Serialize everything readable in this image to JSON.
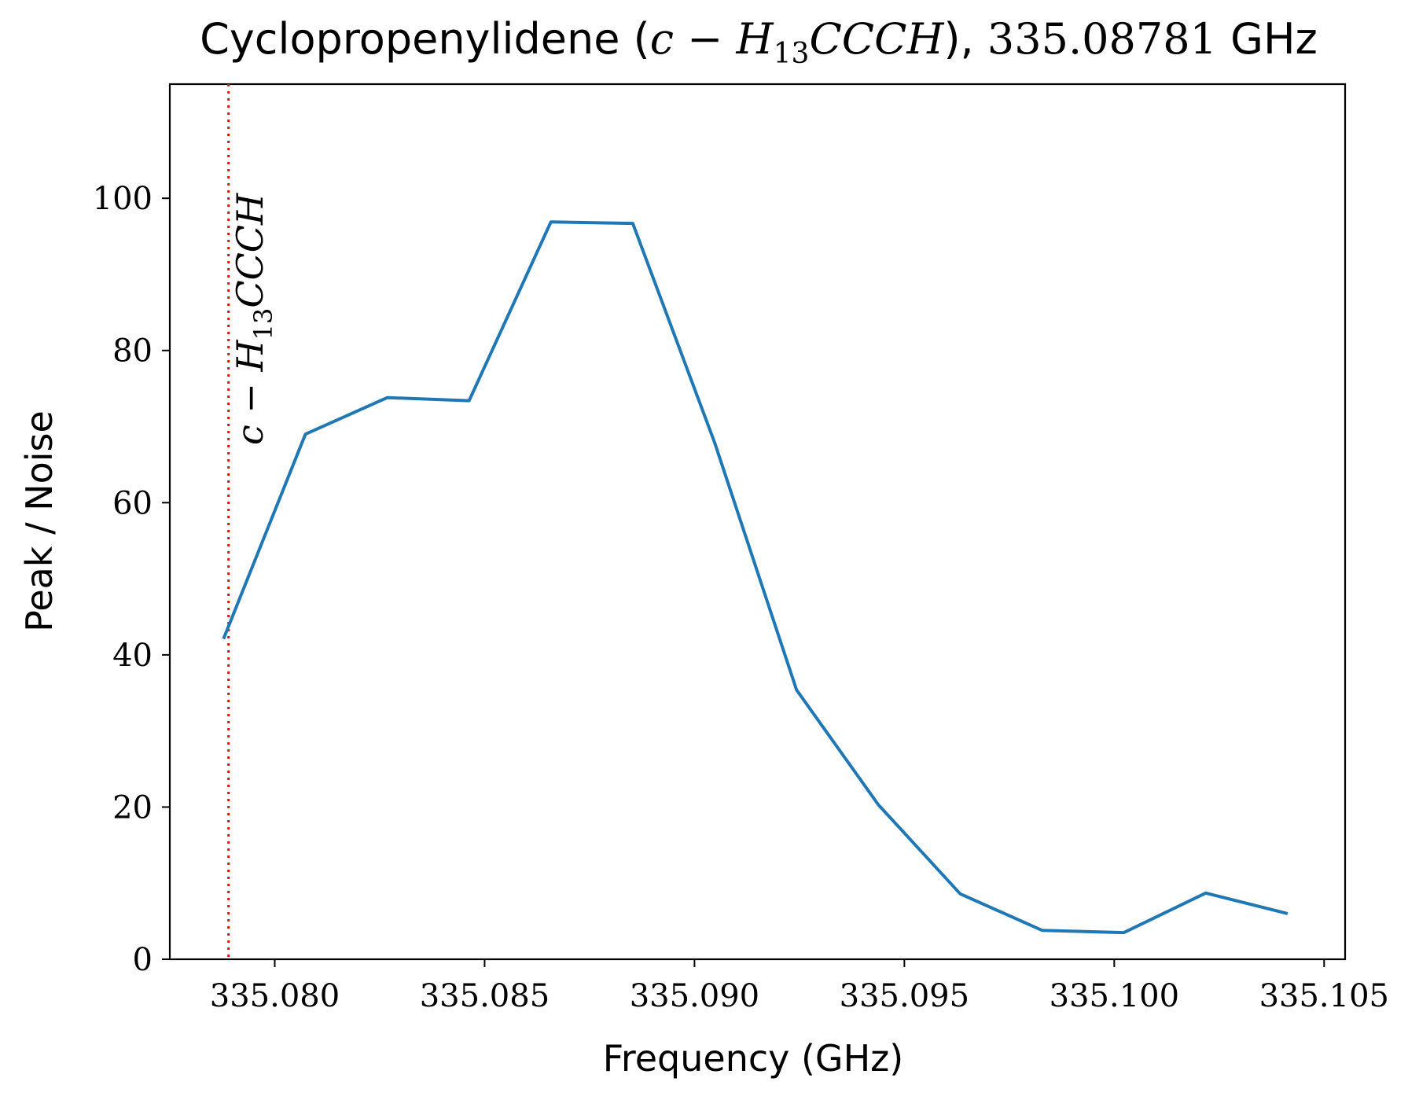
{
  "chart_data": {
    "type": "line",
    "title": {
      "prefix": "Cyclopropenylidene (",
      "math_main": "c − H",
      "math_sub": "13",
      "math_tail": "CCCH",
      "close_comma": "),",
      "freq": "335.08781",
      "unit": "GHz"
    },
    "xlabel": "Frequency (GHz)",
    "ylabel": "Peak / Noise",
    "xlim": [
      335.0775,
      335.1055
    ],
    "ylim": [
      0,
      115
    ],
    "xticks": [
      335.08,
      335.085,
      335.09,
      335.095,
      335.1,
      335.105
    ],
    "xtick_labels": [
      "335.080",
      "335.085",
      "335.090",
      "335.095",
      "335.100",
      "335.105"
    ],
    "yticks": [
      0,
      20,
      40,
      60,
      80,
      100
    ],
    "ytick_labels": [
      "0",
      "20",
      "40",
      "60",
      "80",
      "100"
    ],
    "grid": false,
    "series": [
      {
        "color": "#1f77b4",
        "x": [
          335.07878,
          335.08073,
          335.08268,
          335.08463,
          335.08658,
          335.08853,
          335.09048,
          335.09243,
          335.09438,
          335.09633,
          335.09828,
          335.10023,
          335.10218,
          335.10413
        ],
        "y": [
          42.1,
          69.0,
          73.8,
          73.4,
          96.9,
          96.7,
          67.9,
          35.4,
          20.3,
          8.6,
          3.8,
          3.5,
          8.7,
          6.0
        ]
      }
    ],
    "reference_line": {
      "x": 335.0789,
      "color": "#ff0000",
      "style": "dotted",
      "label": {
        "main": "c − H",
        "sub": "13",
        "tail": "CCCH"
      }
    }
  }
}
